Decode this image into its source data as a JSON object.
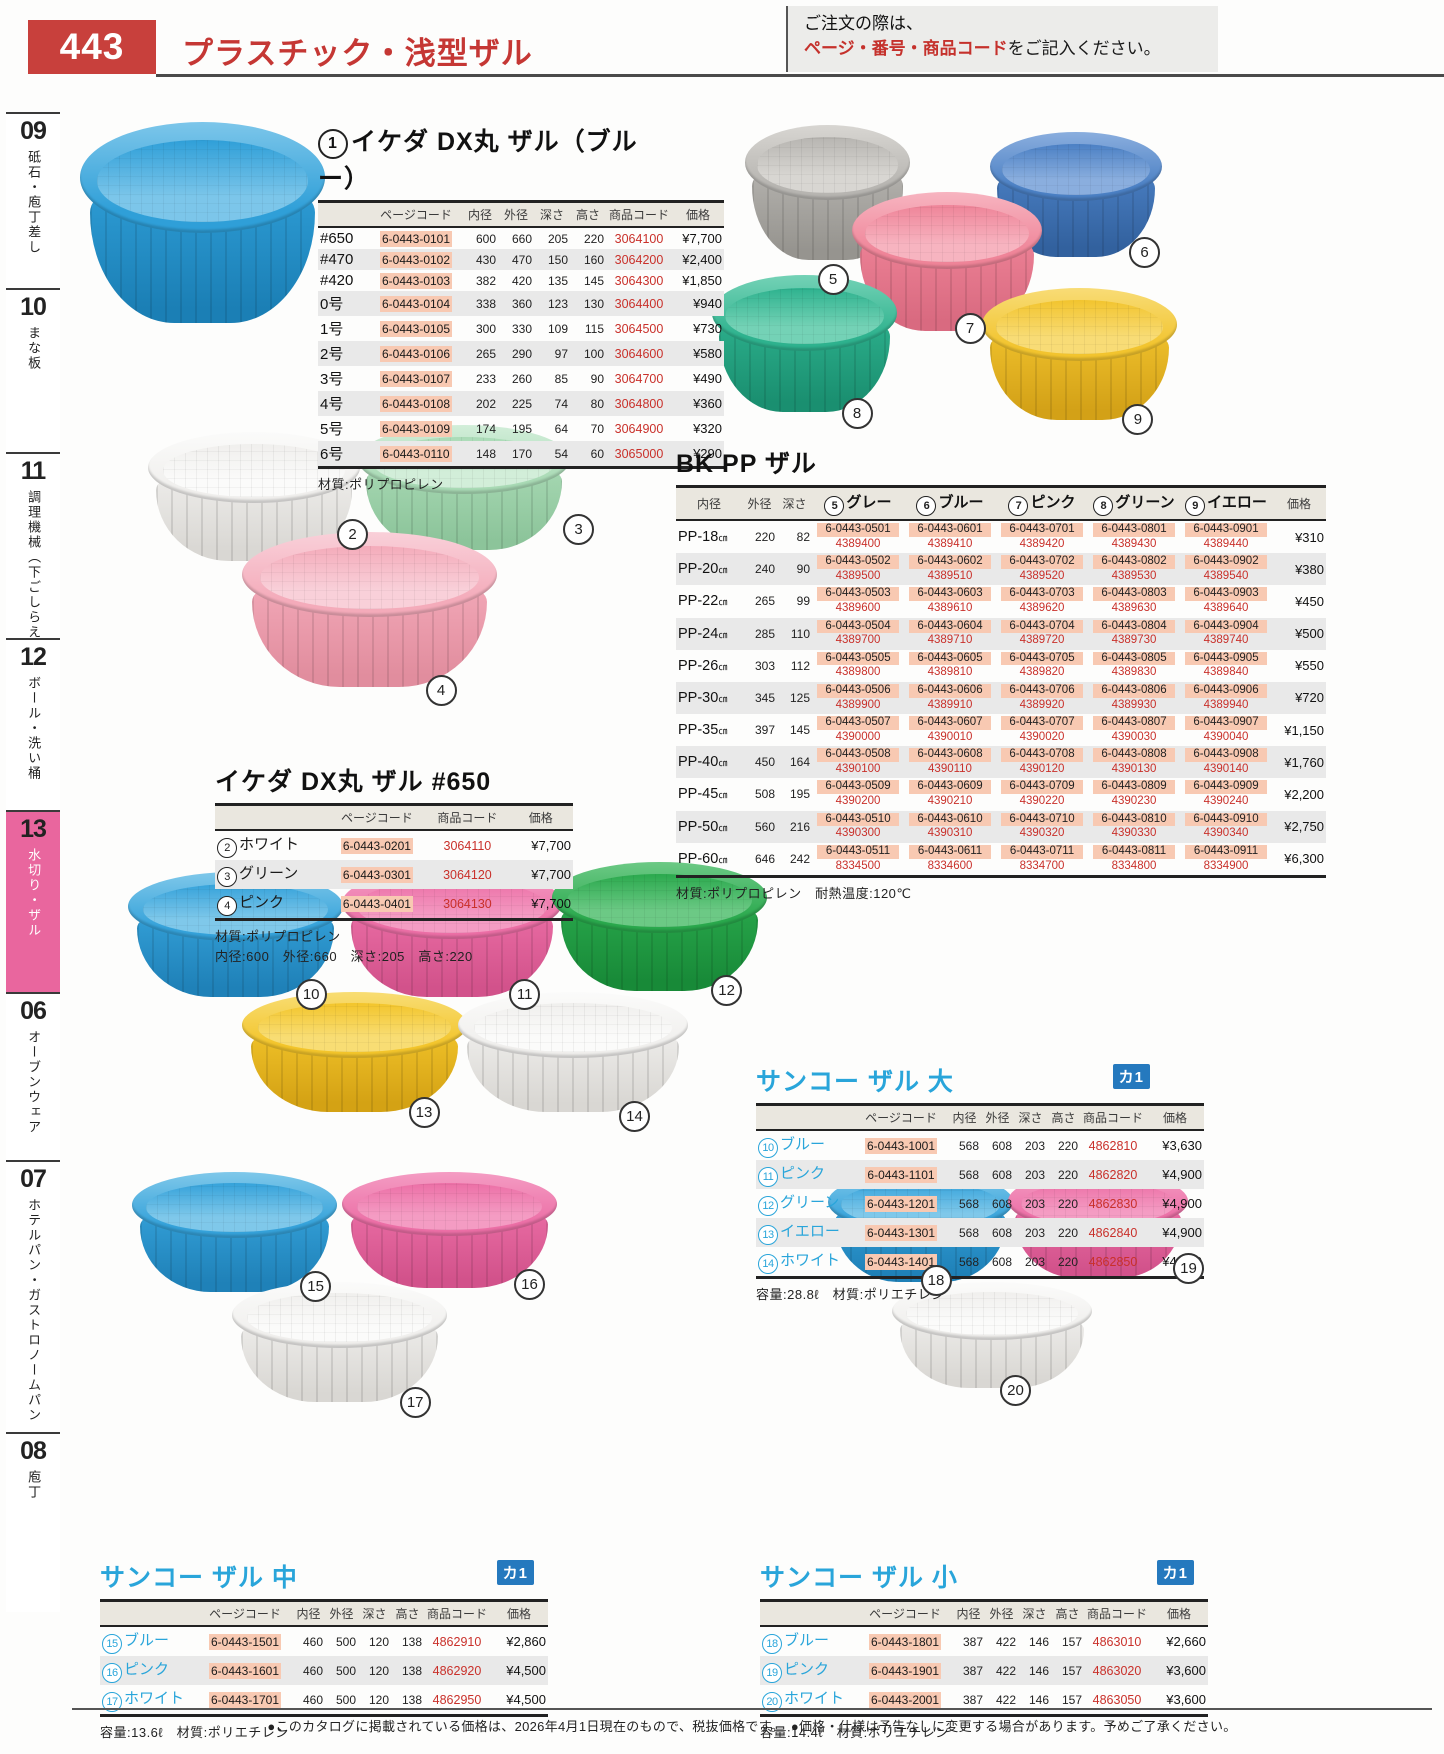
{
  "page": {
    "number": "443",
    "title": "プラスチック・浅型ザル"
  },
  "order_note": {
    "line1": "ご注文の際は、",
    "line2_red": "ページ・番号・商品コード",
    "line2_black": "をご記入ください。"
  },
  "sidebar": [
    {
      "num": "09",
      "label": "砥石・庖丁差し",
      "active": false
    },
    {
      "num": "10",
      "label": "まな板",
      "active": false
    },
    {
      "num": "11",
      "label": "調理機械（下ごしらえ）",
      "active": false
    },
    {
      "num": "12",
      "label": "ボール・洗い桶",
      "active": false
    },
    {
      "num": "13",
      "label": "水切り・ザル",
      "active": true
    },
    {
      "num": "06",
      "label": "オーブンウェア",
      "active": false
    },
    {
      "num": "07",
      "label": "ホテルパン・ガストロノームパン",
      "active": false
    },
    {
      "num": "08",
      "label": "庖丁",
      "active": false
    }
  ],
  "tables": {
    "ikeda_blue": {
      "num": "1",
      "title": "イケダ DX丸 ザル（ブルー）",
      "columns": [
        "",
        "ページコード",
        "内径",
        "外径",
        "深さ",
        "高さ",
        "商品コード",
        "価格"
      ],
      "col_classes": [
        "rowname",
        "pagecode",
        "dim",
        "dim",
        "dim",
        "dim",
        "prodcode",
        "price"
      ],
      "rows": [
        [
          "#650",
          "6-0443-0101",
          "600",
          "660",
          "205",
          "220",
          "3064100",
          "¥7,700"
        ],
        [
          "#470",
          "6-0443-0102",
          "430",
          "470",
          "150",
          "160",
          "3064200",
          "¥2,400"
        ],
        [
          "#420",
          "6-0443-0103",
          "382",
          "420",
          "135",
          "145",
          "3064300",
          "¥1,850"
        ],
        [
          "0号",
          "6-0443-0104",
          "338",
          "360",
          "123",
          "130",
          "3064400",
          "¥940"
        ],
        [
          "1号",
          "6-0443-0105",
          "300",
          "330",
          "109",
          "115",
          "3064500",
          "¥730"
        ],
        [
          "2号",
          "6-0443-0106",
          "265",
          "290",
          "97",
          "100",
          "3064600",
          "¥580"
        ],
        [
          "3号",
          "6-0443-0107",
          "233",
          "260",
          "85",
          "90",
          "3064700",
          "¥490"
        ],
        [
          "4号",
          "6-0443-0108",
          "202",
          "225",
          "74",
          "80",
          "3064800",
          "¥360"
        ],
        [
          "5号",
          "6-0443-0109",
          "174",
          "195",
          "64",
          "70",
          "3064900",
          "¥320"
        ],
        [
          "6号",
          "6-0443-0110",
          "148",
          "170",
          "54",
          "60",
          "3065000",
          "¥290"
        ]
      ],
      "note": "材質:ポリプロピレン"
    },
    "bkpp": {
      "title": "BK PP ザル",
      "columns": [
        "内径",
        "外径",
        "深さ",
        {
          "n": "5",
          "t": "グレー"
        },
        {
          "n": "6",
          "t": "ブルー"
        },
        {
          "n": "7",
          "t": "ピンク"
        },
        {
          "n": "8",
          "t": "グリーン"
        },
        {
          "n": "9",
          "t": "イエロー"
        },
        "価格"
      ],
      "col_classes": [
        "rowname",
        "dim",
        "dim",
        "dual",
        "dual",
        "dual",
        "dual",
        "dual",
        "price"
      ],
      "rows": [
        [
          {
            "t": "PP-18",
            "s": "㎝"
          },
          "220",
          "82",
          [
            "6-0443-0501",
            "4389400"
          ],
          [
            "6-0443-0601",
            "4389410"
          ],
          [
            "6-0443-0701",
            "4389420"
          ],
          [
            "6-0443-0801",
            "4389430"
          ],
          [
            "6-0443-0901",
            "4389440"
          ],
          "¥310"
        ],
        [
          {
            "t": "PP-20",
            "s": "㎝"
          },
          "240",
          "90",
          [
            "6-0443-0502",
            "4389500"
          ],
          [
            "6-0443-0602",
            "4389510"
          ],
          [
            "6-0443-0702",
            "4389520"
          ],
          [
            "6-0443-0802",
            "4389530"
          ],
          [
            "6-0443-0902",
            "4389540"
          ],
          "¥380"
        ],
        [
          {
            "t": "PP-22",
            "s": "㎝"
          },
          "265",
          "99",
          [
            "6-0443-0503",
            "4389600"
          ],
          [
            "6-0443-0603",
            "4389610"
          ],
          [
            "6-0443-0703",
            "4389620"
          ],
          [
            "6-0443-0803",
            "4389630"
          ],
          [
            "6-0443-0903",
            "4389640"
          ],
          "¥450"
        ],
        [
          {
            "t": "PP-24",
            "s": "㎝"
          },
          "285",
          "110",
          [
            "6-0443-0504",
            "4389700"
          ],
          [
            "6-0443-0604",
            "4389710"
          ],
          [
            "6-0443-0704",
            "4389720"
          ],
          [
            "6-0443-0804",
            "4389730"
          ],
          [
            "6-0443-0904",
            "4389740"
          ],
          "¥500"
        ],
        [
          {
            "t": "PP-26",
            "s": "㎝"
          },
          "303",
          "112",
          [
            "6-0443-0505",
            "4389800"
          ],
          [
            "6-0443-0605",
            "4389810"
          ],
          [
            "6-0443-0705",
            "4389820"
          ],
          [
            "6-0443-0805",
            "4389830"
          ],
          [
            "6-0443-0905",
            "4389840"
          ],
          "¥550"
        ],
        [
          {
            "t": "PP-30",
            "s": "㎝"
          },
          "345",
          "125",
          [
            "6-0443-0506",
            "4389900"
          ],
          [
            "6-0443-0606",
            "4389910"
          ],
          [
            "6-0443-0706",
            "4389920"
          ],
          [
            "6-0443-0806",
            "4389930"
          ],
          [
            "6-0443-0906",
            "4389940"
          ],
          "¥720"
        ],
        [
          {
            "t": "PP-35",
            "s": "㎝"
          },
          "397",
          "145",
          [
            "6-0443-0507",
            "4390000"
          ],
          [
            "6-0443-0607",
            "4390010"
          ],
          [
            "6-0443-0707",
            "4390020"
          ],
          [
            "6-0443-0807",
            "4390030"
          ],
          [
            "6-0443-0907",
            "4390040"
          ],
          "¥1,150"
        ],
        [
          {
            "t": "PP-40",
            "s": "㎝"
          },
          "450",
          "164",
          [
            "6-0443-0508",
            "4390100"
          ],
          [
            "6-0443-0608",
            "4390110"
          ],
          [
            "6-0443-0708",
            "4390120"
          ],
          [
            "6-0443-0808",
            "4390130"
          ],
          [
            "6-0443-0908",
            "4390140"
          ],
          "¥1,760"
        ],
        [
          {
            "t": "PP-45",
            "s": "㎝"
          },
          "508",
          "195",
          [
            "6-0443-0509",
            "4390200"
          ],
          [
            "6-0443-0609",
            "4390210"
          ],
          [
            "6-0443-0709",
            "4390220"
          ],
          [
            "6-0443-0809",
            "4390230"
          ],
          [
            "6-0443-0909",
            "4390240"
          ],
          "¥2,200"
        ],
        [
          {
            "t": "PP-50",
            "s": "㎝"
          },
          "560",
          "216",
          [
            "6-0443-0510",
            "4390300"
          ],
          [
            "6-0443-0610",
            "4390310"
          ],
          [
            "6-0443-0710",
            "4390320"
          ],
          [
            "6-0443-0810",
            "4390330"
          ],
          [
            "6-0443-0910",
            "4390340"
          ],
          "¥2,750"
        ],
        [
          {
            "t": "PP-60",
            "s": "㎝"
          },
          "646",
          "242",
          [
            "6-0443-0511",
            "8334500"
          ],
          [
            "6-0443-0611",
            "8334600"
          ],
          [
            "6-0443-0711",
            "8334700"
          ],
          [
            "6-0443-0811",
            "8334800"
          ],
          [
            "6-0443-0911",
            "8334900"
          ],
          "¥6,300"
        ]
      ],
      "note": "材質:ポリプロピレン　耐熱温度:120℃"
    },
    "ikeda650": {
      "title": "イケダ DX丸 ザル #650",
      "columns": [
        "",
        "ページコード",
        "商品コード",
        "価格"
      ],
      "col_classes": [
        "cname",
        "pagecode",
        "prodcode",
        "price"
      ],
      "rows": [
        [
          {
            "n": "2",
            "t": "ホワイト"
          },
          "6-0443-0201",
          "3064110",
          "¥7,700"
        ],
        [
          {
            "n": "3",
            "t": "グリーン"
          },
          "6-0443-0301",
          "3064120",
          "¥7,700"
        ],
        [
          {
            "n": "4",
            "t": "ピンク"
          },
          "6-0443-0401",
          "3064130",
          "¥7,700"
        ]
      ],
      "note": "材質:ポリプロピレン",
      "note2": "内径:600　外径:660　深さ:205　高さ:220"
    },
    "sanko_dai": {
      "title": "サンコー ザル 大",
      "badge": "カ1",
      "columns": [
        "",
        "ページコード",
        "内径",
        "外径",
        "深さ",
        "高さ",
        "商品コード",
        "価格"
      ],
      "col_classes": [
        "cname",
        "pagecode",
        "dim",
        "dim",
        "dim",
        "dim",
        "prodcode",
        "price"
      ],
      "rows": [
        [
          {
            "n": "10",
            "t": "ブルー"
          },
          "6-0443-1001",
          "568",
          "608",
          "203",
          "220",
          "4862810",
          "¥3,630"
        ],
        [
          {
            "n": "11",
            "t": "ピンク"
          },
          "6-0443-1101",
          "568",
          "608",
          "203",
          "220",
          "4862820",
          "¥4,900"
        ],
        [
          {
            "n": "12",
            "t": "グリーン"
          },
          "6-0443-1201",
          "568",
          "608",
          "203",
          "220",
          "4862830",
          "¥4,900"
        ],
        [
          {
            "n": "13",
            "t": "イエロー"
          },
          "6-0443-1301",
          "568",
          "608",
          "203",
          "220",
          "4862840",
          "¥4,900"
        ],
        [
          {
            "n": "14",
            "t": "ホワイト"
          },
          "6-0443-1401",
          "568",
          "608",
          "203",
          "220",
          "4862850",
          "¥4,900"
        ]
      ],
      "note": "容量:28.8ℓ　材質:ポリエチレン"
    },
    "sanko_chu": {
      "title": "サンコー ザル 中",
      "badge": "カ1",
      "columns": [
        "",
        "ページコード",
        "内径",
        "外径",
        "深さ",
        "高さ",
        "商品コード",
        "価格"
      ],
      "col_classes": [
        "cname",
        "pagecode",
        "dim",
        "dim",
        "dim",
        "dim",
        "prodcode",
        "price"
      ],
      "rows": [
        [
          {
            "n": "15",
            "t": "ブルー"
          },
          "6-0443-1501",
          "460",
          "500",
          "120",
          "138",
          "4862910",
          "¥2,860"
        ],
        [
          {
            "n": "16",
            "t": "ピンク"
          },
          "6-0443-1601",
          "460",
          "500",
          "120",
          "138",
          "4862920",
          "¥4,500"
        ],
        [
          {
            "n": "17",
            "t": "ホワイト"
          },
          "6-0443-1701",
          "460",
          "500",
          "120",
          "138",
          "4862950",
          "¥4,500"
        ]
      ],
      "note": "容量:13.6ℓ　材質:ポリエチレン"
    },
    "sanko_sho": {
      "title": "サンコー ザル 小",
      "badge": "カ1",
      "columns": [
        "",
        "ページコード",
        "内径",
        "外径",
        "深さ",
        "高さ",
        "商品コード",
        "価格"
      ],
      "col_classes": [
        "cname",
        "pagecode",
        "dim",
        "dim",
        "dim",
        "dim",
        "prodcode",
        "price"
      ],
      "rows": [
        [
          {
            "n": "18",
            "t": "ブルー"
          },
          "6-0443-1801",
          "387",
          "422",
          "146",
          "157",
          "4863010",
          "¥2,660"
        ],
        [
          {
            "n": "19",
            "t": "ピンク"
          },
          "6-0443-1901",
          "387",
          "422",
          "146",
          "157",
          "4863020",
          "¥3,600"
        ],
        [
          {
            "n": "20",
            "t": "ホワイト"
          },
          "6-0443-2001",
          "387",
          "422",
          "146",
          "157",
          "4863050",
          "¥3,600"
        ]
      ],
      "note": "容量:14.4ℓ　材質:ポリエチレン"
    }
  },
  "bowls": [
    {
      "num": "",
      "name": "blue",
      "c": "#2f9fd8",
      "cl": "#7cc6ea",
      "cd": "#1b7fb5"
    },
    {
      "num": "5",
      "name": "gray",
      "c": "#b7b5b1",
      "cl": "#d8d6d2",
      "cd": "#96948f"
    },
    {
      "num": "6",
      "name": "blue",
      "c": "#4b80c4",
      "cl": "#8aaede",
      "cd": "#32619e"
    },
    {
      "num": "7",
      "name": "pink",
      "c": "#ef8498",
      "cl": "#f7b4c0",
      "cd": "#d96a80"
    },
    {
      "num": "8",
      "name": "green",
      "c": "#2eb28e",
      "cl": "#74d2b6",
      "cd": "#1a8f70"
    },
    {
      "num": "9",
      "name": "yellow",
      "c": "#f2c42e",
      "cl": "#f8dc76",
      "cd": "#d3a117"
    },
    {
      "num": "2",
      "name": "white",
      "c": "#f0efed",
      "cl": "#fbfbfa",
      "cd": "#d9d7d3"
    },
    {
      "num": "3",
      "name": "green",
      "c": "#a9dab5",
      "cl": "#d2eed9",
      "cd": "#8cc49a"
    },
    {
      "num": "4",
      "name": "pink",
      "c": "#f4abba",
      "cl": "#f9d0d9",
      "cd": "#e18d9e"
    },
    {
      "num": "10",
      "name": "blue",
      "c": "#35a2da",
      "cl": "#7fc8ea",
      "cd": "#1f81b8"
    },
    {
      "num": "11",
      "name": "pink",
      "c": "#ec6fa6",
      "cl": "#f49cc3",
      "cd": "#d2528b"
    },
    {
      "num": "12",
      "name": "green",
      "c": "#2aa94d",
      "cl": "#6cc985",
      "cd": "#188a38"
    },
    {
      "num": "13",
      "name": "yellow",
      "c": "#f3c52b",
      "cl": "#f8dd74",
      "cd": "#d4a214"
    },
    {
      "num": "14",
      "name": "white",
      "c": "#f0efed",
      "cl": "#fbfbfa",
      "cd": "#d9d7d3"
    },
    {
      "num": "15",
      "name": "blue",
      "c": "#35a2da",
      "cl": "#7fc8ea",
      "cd": "#1f81b8"
    },
    {
      "num": "16",
      "name": "pink",
      "c": "#ec6fa6",
      "cl": "#f49cc3",
      "cd": "#d2528b"
    },
    {
      "num": "17",
      "name": "white",
      "c": "#f0efed",
      "cl": "#fbfbfa",
      "cd": "#d9d7d3"
    },
    {
      "num": "18",
      "name": "blue",
      "c": "#35a2da",
      "cl": "#7fc8ea",
      "cd": "#1f81b8"
    },
    {
      "num": "19",
      "name": "pink",
      "c": "#ec6fa6",
      "cl": "#f49cc3",
      "cd": "#d2528b"
    },
    {
      "num": "20",
      "name": "white",
      "c": "#f0efed",
      "cl": "#fbfbfa",
      "cd": "#d9d7d3"
    }
  ],
  "footer": "●このカタログに掲載されている価格は、2026年4月1日現在のもので、税抜価格です。　●価格・仕様は予告なしに変更する場合があります。予めご了承ください。"
}
